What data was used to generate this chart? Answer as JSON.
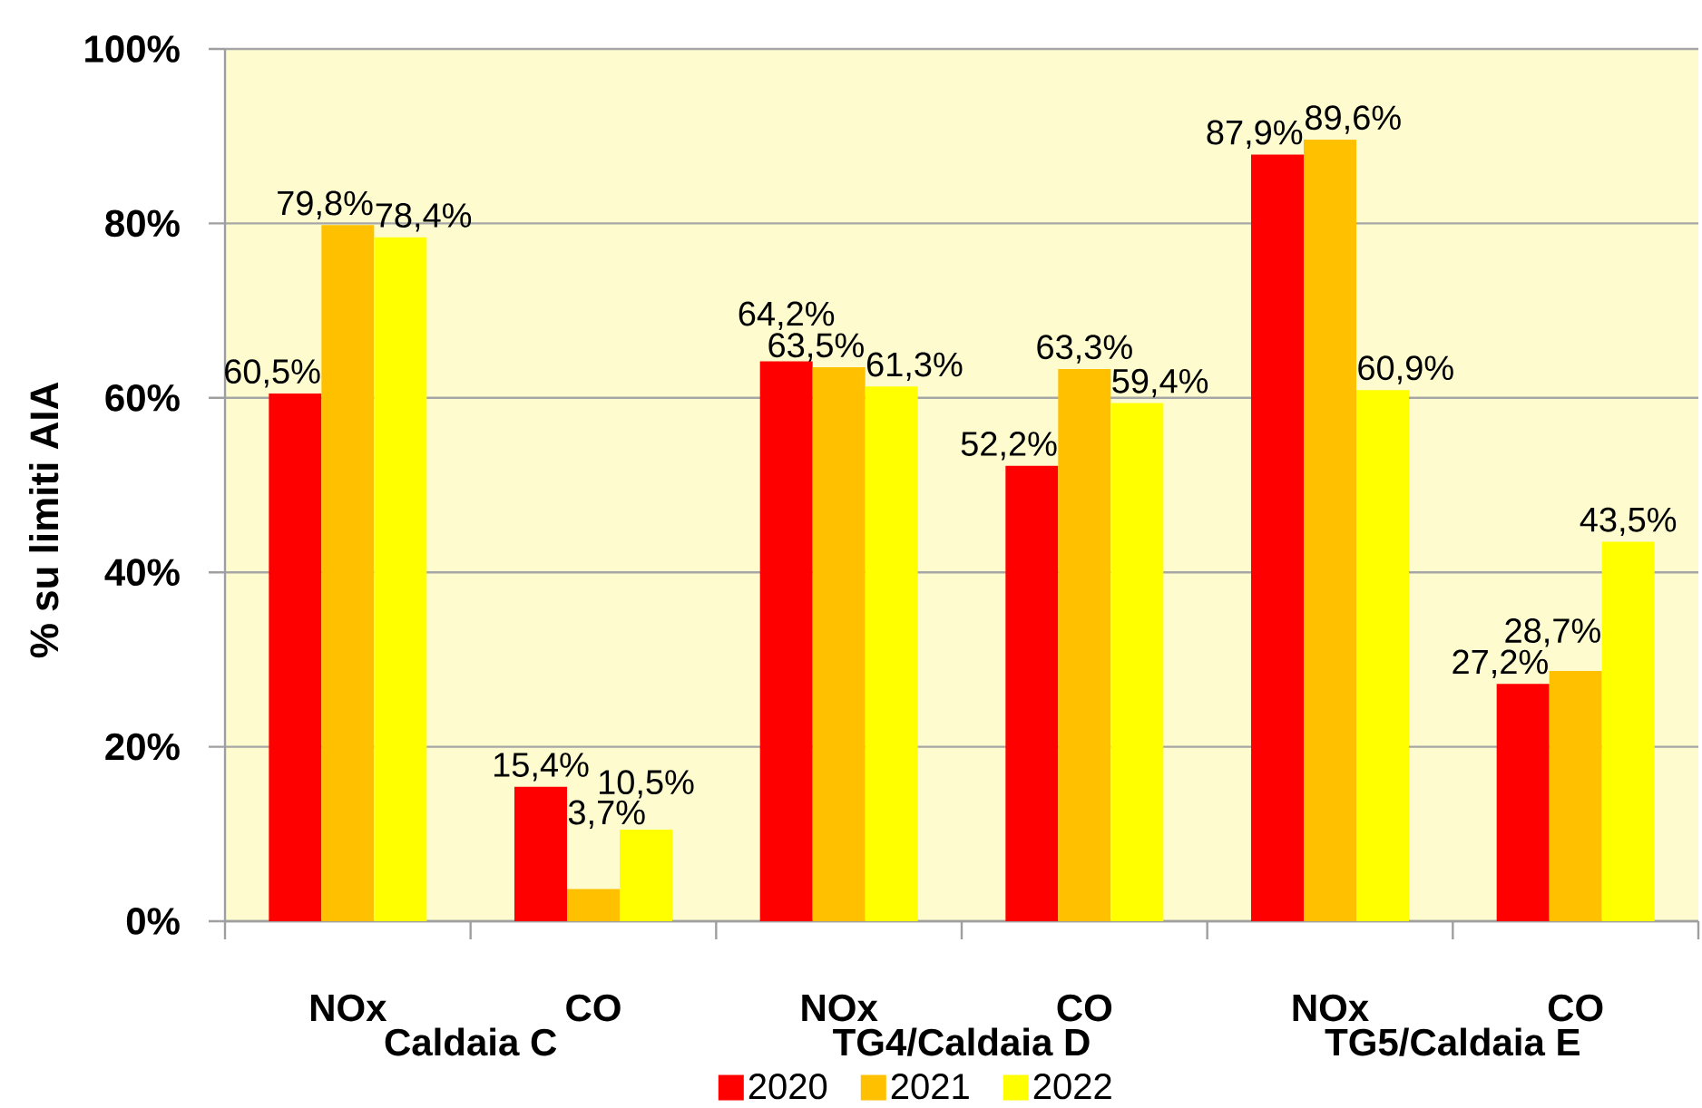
{
  "chart_data": {
    "type": "bar",
    "ylabel": "% su limiti AIA",
    "categories": [
      "NOx",
      "CO",
      "NOx",
      "CO",
      "NOx",
      "CO"
    ],
    "annotations": [
      "Caldaia C",
      "TG4/Caldaia D",
      "TG5/Caldaia E"
    ],
    "series": [
      {
        "name": "2020",
        "color": "#ff0000",
        "values": [
          60.5,
          15.4,
          64.2,
          52.2,
          87.9,
          27.2
        ],
        "value_labels": [
          "60,5%",
          "15,4%",
          "64,2%",
          "52,2%",
          "87,9%",
          "27,2%"
        ]
      },
      {
        "name": "2021",
        "color": "#ffc000",
        "values": [
          79.8,
          3.7,
          63.5,
          63.3,
          89.6,
          28.7
        ],
        "value_labels": [
          "79,8%",
          "3,7%",
          "63,5%",
          "63,3%",
          "89,6%",
          "28,7%"
        ]
      },
      {
        "name": "2022",
        "color": "#ffff00",
        "values": [
          78.4,
          10.5,
          61.3,
          59.4,
          60.9,
          43.5
        ],
        "value_labels": [
          "78,4%",
          "10,5%",
          "61,3%",
          "59,4%",
          "60,9%",
          "43,5%"
        ]
      }
    ],
    "ylim": [
      0,
      100
    ],
    "yticks": [
      {
        "value": 0,
        "label": "0%"
      },
      {
        "value": 20,
        "label": "20%"
      },
      {
        "value": 40,
        "label": "40%"
      },
      {
        "value": 60,
        "label": "60%"
      },
      {
        "value": 80,
        "label": "80%"
      },
      {
        "value": 100,
        "label": "100%"
      }
    ],
    "grid": "y",
    "legend": "bottom"
  }
}
